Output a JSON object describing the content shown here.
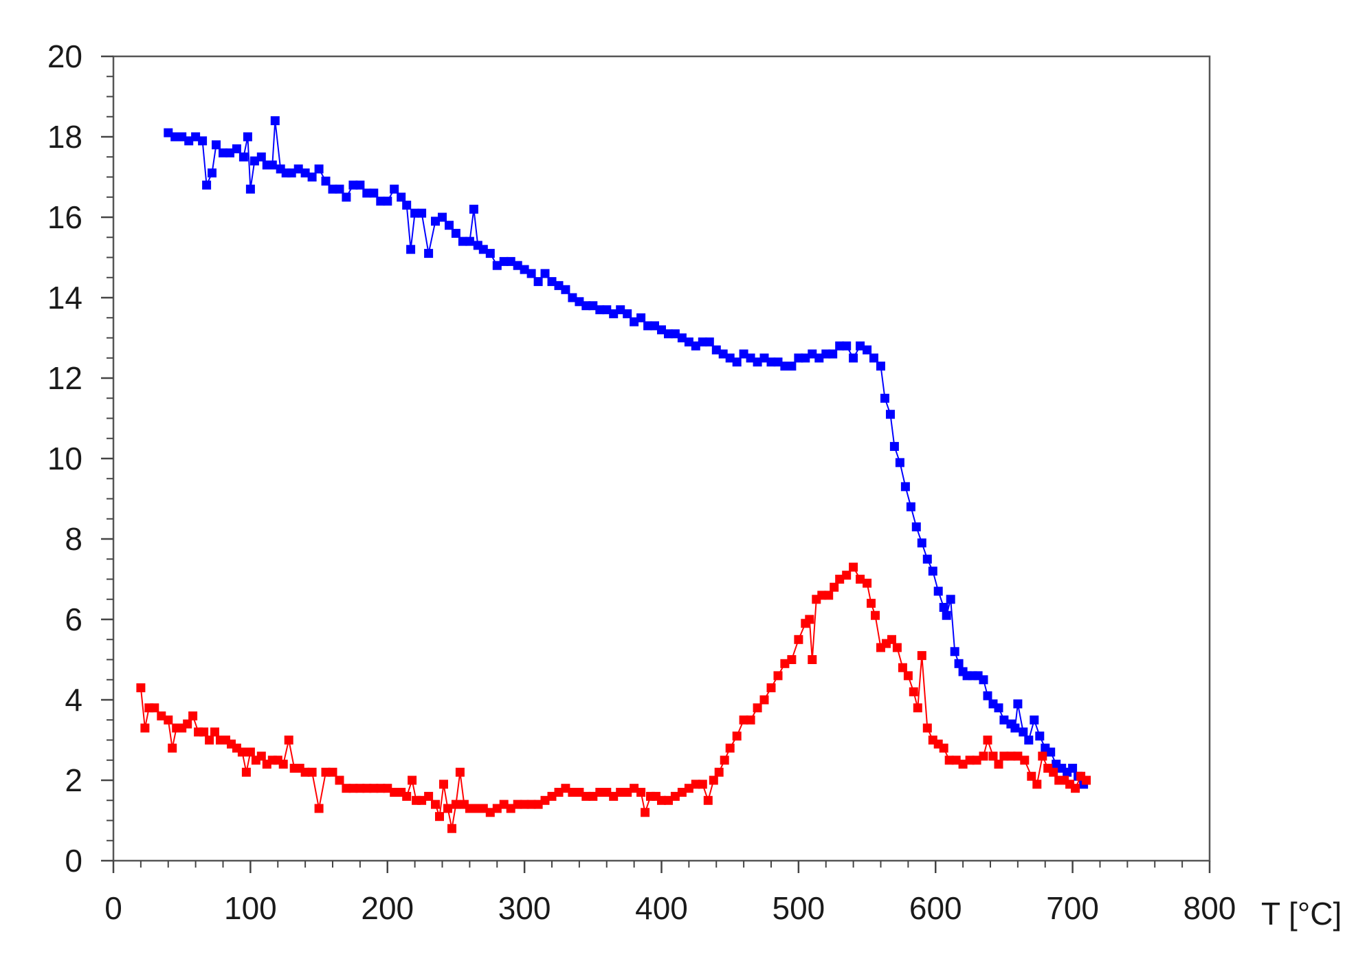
{
  "chart_data": {
    "type": "line",
    "title": "",
    "xlabel": "T [°C]",
    "ylabel": "",
    "xlim": [
      0,
      800
    ],
    "ylim": [
      0,
      20
    ],
    "x_ticks": [
      0,
      100,
      200,
      300,
      400,
      500,
      600,
      700,
      800
    ],
    "y_ticks": [
      0,
      2,
      4,
      6,
      8,
      10,
      12,
      14,
      16,
      18,
      20
    ],
    "grid": false,
    "legend": "none",
    "marker": "square",
    "series": [
      {
        "color": "#0000ff",
        "points": [
          [
            40,
            18.1
          ],
          [
            45,
            18.0
          ],
          [
            50,
            18.0
          ],
          [
            55,
            17.9
          ],
          [
            60,
            18.0
          ],
          [
            65,
            17.9
          ],
          [
            68,
            16.8
          ],
          [
            72,
            17.1
          ],
          [
            75,
            17.8
          ],
          [
            80,
            17.6
          ],
          [
            85,
            17.6
          ],
          [
            90,
            17.7
          ],
          [
            95,
            17.5
          ],
          [
            98,
            18.0
          ],
          [
            100,
            16.7
          ],
          [
            103,
            17.4
          ],
          [
            108,
            17.5
          ],
          [
            112,
            17.3
          ],
          [
            116,
            17.3
          ],
          [
            118,
            18.4
          ],
          [
            122,
            17.2
          ],
          [
            126,
            17.1
          ],
          [
            130,
            17.1
          ],
          [
            135,
            17.2
          ],
          [
            140,
            17.1
          ],
          [
            145,
            17.0
          ],
          [
            150,
            17.2
          ],
          [
            155,
            16.9
          ],
          [
            160,
            16.7
          ],
          [
            165,
            16.7
          ],
          [
            170,
            16.5
          ],
          [
            175,
            16.8
          ],
          [
            180,
            16.8
          ],
          [
            185,
            16.6
          ],
          [
            190,
            16.6
          ],
          [
            195,
            16.4
          ],
          [
            200,
            16.4
          ],
          [
            205,
            16.7
          ],
          [
            210,
            16.5
          ],
          [
            214,
            16.3
          ],
          [
            217,
            15.2
          ],
          [
            220,
            16.1
          ],
          [
            225,
            16.1
          ],
          [
            230,
            15.1
          ],
          [
            235,
            15.9
          ],
          [
            240,
            16.0
          ],
          [
            245,
            15.8
          ],
          [
            250,
            15.6
          ],
          [
            255,
            15.4
          ],
          [
            260,
            15.4
          ],
          [
            263,
            16.2
          ],
          [
            266,
            15.3
          ],
          [
            270,
            15.2
          ],
          [
            275,
            15.1
          ],
          [
            280,
            14.8
          ],
          [
            285,
            14.9
          ],
          [
            290,
            14.9
          ],
          [
            295,
            14.8
          ],
          [
            300,
            14.7
          ],
          [
            305,
            14.6
          ],
          [
            310,
            14.4
          ],
          [
            315,
            14.6
          ],
          [
            320,
            14.4
          ],
          [
            325,
            14.3
          ],
          [
            330,
            14.2
          ],
          [
            335,
            14.0
          ],
          [
            340,
            13.9
          ],
          [
            345,
            13.8
          ],
          [
            350,
            13.8
          ],
          [
            355,
            13.7
          ],
          [
            360,
            13.7
          ],
          [
            365,
            13.6
          ],
          [
            370,
            13.7
          ],
          [
            375,
            13.6
          ],
          [
            380,
            13.4
          ],
          [
            385,
            13.5
          ],
          [
            390,
            13.3
          ],
          [
            395,
            13.3
          ],
          [
            400,
            13.2
          ],
          [
            405,
            13.1
          ],
          [
            410,
            13.1
          ],
          [
            415,
            13.0
          ],
          [
            420,
            12.9
          ],
          [
            425,
            12.8
          ],
          [
            430,
            12.9
          ],
          [
            435,
            12.9
          ],
          [
            440,
            12.7
          ],
          [
            445,
            12.6
          ],
          [
            450,
            12.5
          ],
          [
            455,
            12.4
          ],
          [
            460,
            12.6
          ],
          [
            465,
            12.5
          ],
          [
            470,
            12.4
          ],
          [
            475,
            12.5
          ],
          [
            480,
            12.4
          ],
          [
            485,
            12.4
          ],
          [
            490,
            12.3
          ],
          [
            495,
            12.3
          ],
          [
            500,
            12.5
          ],
          [
            505,
            12.5
          ],
          [
            510,
            12.6
          ],
          [
            515,
            12.5
          ],
          [
            520,
            12.6
          ],
          [
            525,
            12.6
          ],
          [
            530,
            12.8
          ],
          [
            535,
            12.8
          ],
          [
            540,
            12.5
          ],
          [
            545,
            12.8
          ],
          [
            550,
            12.7
          ],
          [
            555,
            12.5
          ],
          [
            560,
            12.3
          ],
          [
            563,
            11.5
          ],
          [
            567,
            11.1
          ],
          [
            570,
            10.3
          ],
          [
            574,
            9.9
          ],
          [
            578,
            9.3
          ],
          [
            582,
            8.8
          ],
          [
            586,
            8.3
          ],
          [
            590,
            7.9
          ],
          [
            594,
            7.5
          ],
          [
            598,
            7.2
          ],
          [
            602,
            6.7
          ],
          [
            606,
            6.3
          ],
          [
            608,
            6.1
          ],
          [
            611,
            6.5
          ],
          [
            614,
            5.2
          ],
          [
            617,
            4.9
          ],
          [
            620,
            4.7
          ],
          [
            623,
            4.6
          ],
          [
            627,
            4.6
          ],
          [
            631,
            4.6
          ],
          [
            635,
            4.5
          ],
          [
            638,
            4.1
          ],
          [
            642,
            3.9
          ],
          [
            646,
            3.8
          ],
          [
            650,
            3.5
          ],
          [
            655,
            3.4
          ],
          [
            658,
            3.3
          ],
          [
            660,
            3.9
          ],
          [
            664,
            3.2
          ],
          [
            668,
            3.0
          ],
          [
            672,
            3.5
          ],
          [
            676,
            3.1
          ],
          [
            680,
            2.8
          ],
          [
            684,
            2.7
          ],
          [
            688,
            2.4
          ],
          [
            692,
            2.3
          ],
          [
            696,
            2.2
          ],
          [
            700,
            2.3
          ],
          [
            704,
            2.1
          ],
          [
            708,
            1.9
          ]
        ]
      },
      {
        "color": "#ff0000",
        "points": [
          [
            20,
            4.3
          ],
          [
            23,
            3.3
          ],
          [
            26,
            3.8
          ],
          [
            30,
            3.8
          ],
          [
            35,
            3.6
          ],
          [
            40,
            3.5
          ],
          [
            43,
            2.8
          ],
          [
            46,
            3.3
          ],
          [
            50,
            3.3
          ],
          [
            54,
            3.4
          ],
          [
            58,
            3.6
          ],
          [
            62,
            3.2
          ],
          [
            66,
            3.2
          ],
          [
            70,
            3.0
          ],
          [
            74,
            3.2
          ],
          [
            78,
            3.0
          ],
          [
            82,
            3.0
          ],
          [
            86,
            2.9
          ],
          [
            90,
            2.8
          ],
          [
            94,
            2.7
          ],
          [
            97,
            2.2
          ],
          [
            100,
            2.7
          ],
          [
            104,
            2.5
          ],
          [
            108,
            2.6
          ],
          [
            112,
            2.4
          ],
          [
            116,
            2.5
          ],
          [
            120,
            2.5
          ],
          [
            124,
            2.4
          ],
          [
            128,
            3.0
          ],
          [
            132,
            2.3
          ],
          [
            136,
            2.3
          ],
          [
            140,
            2.2
          ],
          [
            145,
            2.2
          ],
          [
            150,
            1.3
          ],
          [
            155,
            2.2
          ],
          [
            160,
            2.2
          ],
          [
            165,
            2.0
          ],
          [
            170,
            1.8
          ],
          [
            175,
            1.8
          ],
          [
            180,
            1.8
          ],
          [
            185,
            1.8
          ],
          [
            190,
            1.8
          ],
          [
            195,
            1.8
          ],
          [
            200,
            1.8
          ],
          [
            205,
            1.7
          ],
          [
            210,
            1.7
          ],
          [
            214,
            1.6
          ],
          [
            218,
            2.0
          ],
          [
            221,
            1.5
          ],
          [
            225,
            1.5
          ],
          [
            230,
            1.6
          ],
          [
            235,
            1.4
          ],
          [
            238,
            1.1
          ],
          [
            241,
            1.9
          ],
          [
            244,
            1.3
          ],
          [
            247,
            0.8
          ],
          [
            250,
            1.4
          ],
          [
            253,
            2.2
          ],
          [
            256,
            1.4
          ],
          [
            260,
            1.3
          ],
          [
            265,
            1.3
          ],
          [
            270,
            1.3
          ],
          [
            275,
            1.2
          ],
          [
            280,
            1.3
          ],
          [
            285,
            1.4
          ],
          [
            290,
            1.3
          ],
          [
            295,
            1.4
          ],
          [
            300,
            1.4
          ],
          [
            305,
            1.4
          ],
          [
            310,
            1.4
          ],
          [
            315,
            1.5
          ],
          [
            320,
            1.6
          ],
          [
            325,
            1.7
          ],
          [
            330,
            1.8
          ],
          [
            335,
            1.7
          ],
          [
            340,
            1.7
          ],
          [
            345,
            1.6
          ],
          [
            350,
            1.6
          ],
          [
            355,
            1.7
          ],
          [
            360,
            1.7
          ],
          [
            365,
            1.6
          ],
          [
            370,
            1.7
          ],
          [
            375,
            1.7
          ],
          [
            380,
            1.8
          ],
          [
            385,
            1.7
          ],
          [
            388,
            1.2
          ],
          [
            392,
            1.6
          ],
          [
            396,
            1.6
          ],
          [
            400,
            1.5
          ],
          [
            405,
            1.5
          ],
          [
            410,
            1.6
          ],
          [
            415,
            1.7
          ],
          [
            420,
            1.8
          ],
          [
            425,
            1.9
          ],
          [
            430,
            1.9
          ],
          [
            434,
            1.5
          ],
          [
            438,
            2.0
          ],
          [
            442,
            2.2
          ],
          [
            446,
            2.5
          ],
          [
            450,
            2.8
          ],
          [
            455,
            3.1
          ],
          [
            460,
            3.5
          ],
          [
            465,
            3.5
          ],
          [
            470,
            3.8
          ],
          [
            475,
            4.0
          ],
          [
            480,
            4.3
          ],
          [
            485,
            4.6
          ],
          [
            490,
            4.9
          ],
          [
            495,
            5.0
          ],
          [
            500,
            5.5
          ],
          [
            505,
            5.9
          ],
          [
            508,
            6.0
          ],
          [
            510,
            5.0
          ],
          [
            513,
            6.5
          ],
          [
            517,
            6.6
          ],
          [
            522,
            6.6
          ],
          [
            526,
            6.8
          ],
          [
            530,
            7.0
          ],
          [
            535,
            7.1
          ],
          [
            540,
            7.3
          ],
          [
            545,
            7.0
          ],
          [
            550,
            6.9
          ],
          [
            553,
            6.4
          ],
          [
            556,
            6.1
          ],
          [
            560,
            5.3
          ],
          [
            564,
            5.4
          ],
          [
            568,
            5.5
          ],
          [
            572,
            5.3
          ],
          [
            576,
            4.8
          ],
          [
            580,
            4.6
          ],
          [
            584,
            4.2
          ],
          [
            587,
            3.8
          ],
          [
            590,
            5.1
          ],
          [
            594,
            3.3
          ],
          [
            598,
            3.0
          ],
          [
            602,
            2.9
          ],
          [
            606,
            2.8
          ],
          [
            610,
            2.5
          ],
          [
            615,
            2.5
          ],
          [
            620,
            2.4
          ],
          [
            625,
            2.5
          ],
          [
            630,
            2.5
          ],
          [
            635,
            2.6
          ],
          [
            638,
            3.0
          ],
          [
            642,
            2.6
          ],
          [
            646,
            2.4
          ],
          [
            650,
            2.6
          ],
          [
            655,
            2.6
          ],
          [
            660,
            2.6
          ],
          [
            665,
            2.5
          ],
          [
            670,
            2.1
          ],
          [
            674,
            1.9
          ],
          [
            678,
            2.6
          ],
          [
            682,
            2.3
          ],
          [
            686,
            2.2
          ],
          [
            690,
            2.0
          ],
          [
            694,
            2.0
          ],
          [
            698,
            1.9
          ],
          [
            702,
            1.8
          ],
          [
            706,
            2.1
          ],
          [
            710,
            2.0
          ]
        ]
      }
    ]
  }
}
